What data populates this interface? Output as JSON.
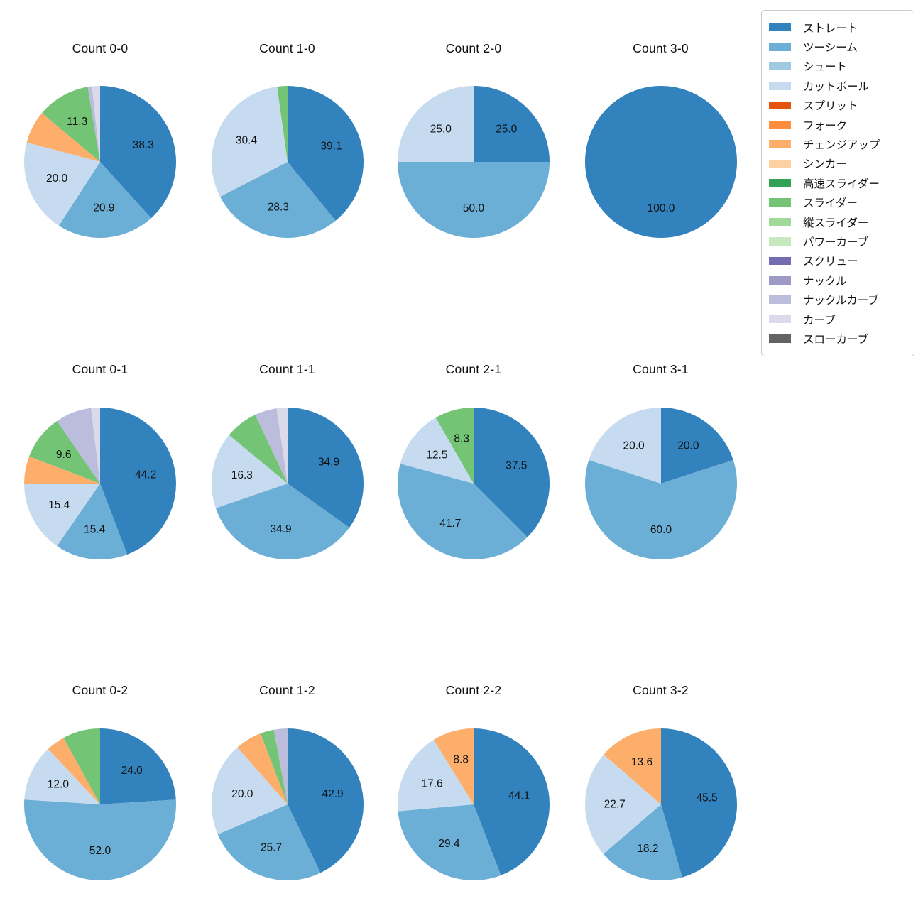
{
  "palette": {
    "ストレート": "#3182bd",
    "ツーシーム": "#6baed6",
    "シュート": "#9ecae1",
    "カットボール": "#c6dbef",
    "スプリット": "#e6550d",
    "フォーク": "#fd8d3c",
    "チェンジアップ": "#fdae6b",
    "シンカー": "#fdd0a2",
    "高速スライダー": "#31a354",
    "スライダー": "#74c476",
    "縦スライダー": "#a1d99b",
    "パワーカーブ": "#c7e9c0",
    "スクリュー": "#756bb1",
    "ナックル": "#9e9ac8",
    "ナックルカーブ": "#bcbddc",
    "カーブ": "#dadaeb",
    "スローカーブ": "#636363"
  },
  "legend": {
    "items": [
      "ストレート",
      "ツーシーム",
      "シュート",
      "カットボール",
      "スプリット",
      "フォーク",
      "チェンジアップ",
      "シンカー",
      "高速スライダー",
      "スライダー",
      "縦スライダー",
      "パワーカーブ",
      "スクリュー",
      "ナックル",
      "ナックルカーブ",
      "カーブ",
      "スローカーブ"
    ]
  },
  "chart_data": [
    {
      "type": "pie",
      "title": "Count 0-0",
      "series": [
        {
          "name": "ストレート",
          "value": 38.3,
          "label": "38.3"
        },
        {
          "name": "ツーシーム",
          "value": 20.9,
          "label": "20.9"
        },
        {
          "name": "カットボール",
          "value": 20.0,
          "label": "20.0"
        },
        {
          "name": "チェンジアップ",
          "value": 7.0
        },
        {
          "name": "スライダー",
          "value": 11.3,
          "label": "11.3"
        },
        {
          "name": "ナックルカーブ",
          "value": 0.9
        },
        {
          "name": "カーブ",
          "value": 1.7
        }
      ]
    },
    {
      "type": "pie",
      "title": "Count 1-0",
      "series": [
        {
          "name": "ストレート",
          "value": 39.1,
          "label": "39.1"
        },
        {
          "name": "ツーシーム",
          "value": 28.3,
          "label": "28.3"
        },
        {
          "name": "カットボール",
          "value": 30.4,
          "label": "30.4"
        },
        {
          "name": "スライダー",
          "value": 2.2
        }
      ]
    },
    {
      "type": "pie",
      "title": "Count 2-0",
      "series": [
        {
          "name": "ストレート",
          "value": 25.0,
          "label": "25.0"
        },
        {
          "name": "ツーシーム",
          "value": 50.0,
          "label": "50.0"
        },
        {
          "name": "カットボール",
          "value": 25.0,
          "label": "25.0"
        }
      ]
    },
    {
      "type": "pie",
      "title": "Count 3-0",
      "series": [
        {
          "name": "ストレート",
          "value": 100.0,
          "label": "100.0"
        }
      ]
    },
    {
      "type": "pie",
      "title": "Count 0-1",
      "series": [
        {
          "name": "ストレート",
          "value": 44.2,
          "label": "44.2"
        },
        {
          "name": "ツーシーム",
          "value": 15.4,
          "label": "15.4"
        },
        {
          "name": "カットボール",
          "value": 15.4,
          "label": "15.4"
        },
        {
          "name": "チェンジアップ",
          "value": 5.8
        },
        {
          "name": "スライダー",
          "value": 9.6,
          "label": "9.6"
        },
        {
          "name": "ナックルカーブ",
          "value": 7.7
        },
        {
          "name": "カーブ",
          "value": 1.9
        }
      ]
    },
    {
      "type": "pie",
      "title": "Count 1-1",
      "series": [
        {
          "name": "ストレート",
          "value": 34.9,
          "label": "34.9"
        },
        {
          "name": "ツーシーム",
          "value": 34.9,
          "label": "34.9"
        },
        {
          "name": "カットボール",
          "value": 16.3,
          "label": "16.3"
        },
        {
          "name": "スライダー",
          "value": 7.0
        },
        {
          "name": "ナックルカーブ",
          "value": 4.7
        },
        {
          "name": "カーブ",
          "value": 2.3
        }
      ]
    },
    {
      "type": "pie",
      "title": "Count 2-1",
      "series": [
        {
          "name": "ストレート",
          "value": 37.5,
          "label": "37.5"
        },
        {
          "name": "ツーシーム",
          "value": 41.7,
          "label": "41.7"
        },
        {
          "name": "カットボール",
          "value": 12.5,
          "label": "12.5"
        },
        {
          "name": "スライダー",
          "value": 8.3,
          "label": "8.3"
        }
      ]
    },
    {
      "type": "pie",
      "title": "Count 3-1",
      "series": [
        {
          "name": "ストレート",
          "value": 20.0,
          "label": "20.0"
        },
        {
          "name": "ツーシーム",
          "value": 60.0,
          "label": "60.0"
        },
        {
          "name": "カットボール",
          "value": 20.0,
          "label": "20.0"
        }
      ]
    },
    {
      "type": "pie",
      "title": "Count 0-2",
      "series": [
        {
          "name": "ストレート",
          "value": 24.0,
          "label": "24.0"
        },
        {
          "name": "ツーシーム",
          "value": 52.0,
          "label": "52.0"
        },
        {
          "name": "カットボール",
          "value": 12.0,
          "label": "12.0"
        },
        {
          "name": "チェンジアップ",
          "value": 4.0
        },
        {
          "name": "スライダー",
          "value": 8.0
        }
      ]
    },
    {
      "type": "pie",
      "title": "Count 1-2",
      "series": [
        {
          "name": "ストレート",
          "value": 42.9,
          "label": "42.9"
        },
        {
          "name": "ツーシーム",
          "value": 25.7,
          "label": "25.7"
        },
        {
          "name": "カットボール",
          "value": 20.0,
          "label": "20.0"
        },
        {
          "name": "チェンジアップ",
          "value": 5.7
        },
        {
          "name": "スライダー",
          "value": 2.9
        },
        {
          "name": "ナックルカーブ",
          "value": 2.9
        }
      ]
    },
    {
      "type": "pie",
      "title": "Count 2-2",
      "series": [
        {
          "name": "ストレート",
          "value": 44.1,
          "label": "44.1"
        },
        {
          "name": "ツーシーム",
          "value": 29.4,
          "label": "29.4"
        },
        {
          "name": "カットボール",
          "value": 17.6,
          "label": "17.6"
        },
        {
          "name": "チェンジアップ",
          "value": 8.8,
          "label": "8.8"
        }
      ]
    },
    {
      "type": "pie",
      "title": "Count 3-2",
      "series": [
        {
          "name": "ストレート",
          "value": 45.5,
          "label": "45.5"
        },
        {
          "name": "ツーシーム",
          "value": 18.2,
          "label": "18.2"
        },
        {
          "name": "カットボール",
          "value": 22.7,
          "label": "22.7"
        },
        {
          "name": "チェンジアップ",
          "value": 13.6,
          "label": "13.6"
        }
      ]
    }
  ]
}
